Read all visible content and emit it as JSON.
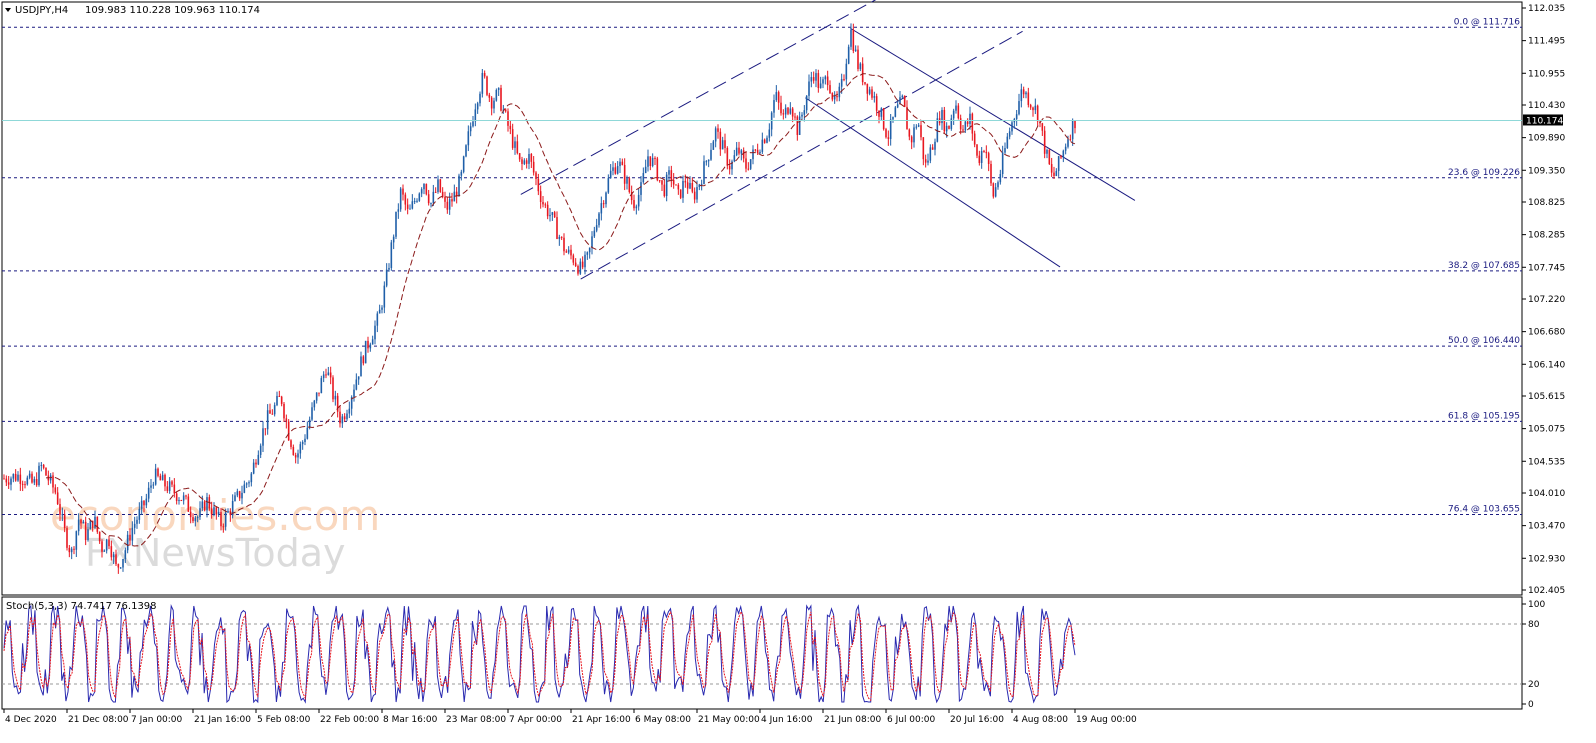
{
  "chart_data": [
    {
      "type": "candlestick",
      "symbol_header": "USDJPY,H4",
      "ohlc_header": "109.983 110.228 109.963 110.174",
      "current_price": "110.174",
      "ylim": [
        102.4,
        112.1
      ],
      "price_ticks": [
        "112.035",
        "111.495",
        "110.955",
        "110.430",
        "109.890",
        "109.350",
        "108.825",
        "108.285",
        "107.745",
        "107.220",
        "106.680",
        "106.140",
        "105.615",
        "105.075",
        "104.535",
        "104.010",
        "103.470",
        "102.930",
        "102.405"
      ],
      "time_ticks": [
        "4 Dec 2020",
        "21 Dec 08:00",
        "7 Jan 00:00",
        "21 Jan 16:00",
        "5 Feb 08:00",
        "22 Feb 00:00",
        "8 Mar 16:00",
        "23 Mar 08:00",
        "7 Apr 00:00",
        "21 Apr 16:00",
        "6 May 08:00",
        "21 May 00:00",
        "4 Jun 16:00",
        "21 Jun 08:00",
        "6 Jul 00:00",
        "20 Jul 16:00",
        "4 Aug 08:00",
        "19 Aug 00:00"
      ],
      "price_path": [
        [
          0,
          104.25
        ],
        [
          2,
          104.3
        ],
        [
          4,
          104.15
        ],
        [
          5,
          104.45
        ],
        [
          7,
          104.0
        ],
        [
          8,
          103.4
        ],
        [
          9,
          103.0
        ],
        [
          10,
          103.6
        ],
        [
          11,
          103.3
        ],
        [
          12,
          103.6
        ],
        [
          13,
          103.1
        ],
        [
          14,
          103.25
        ],
        [
          15,
          102.75
        ],
        [
          16,
          103.0
        ],
        [
          17,
          103.4
        ],
        [
          19,
          103.9
        ],
        [
          20,
          104.3
        ],
        [
          22,
          104.1
        ],
        [
          24,
          103.9
        ],
        [
          25,
          103.7
        ],
        [
          26,
          103.6
        ],
        [
          27,
          103.9
        ],
        [
          29,
          103.5
        ],
        [
          31,
          103.9
        ],
        [
          33,
          104.3
        ],
        [
          34,
          104.8
        ],
        [
          35,
          105.2
        ],
        [
          36,
          105.4
        ],
        [
          37,
          105.6
        ],
        [
          38,
          105.0
        ],
        [
          39,
          104.6
        ],
        [
          40,
          104.9
        ],
        [
          41,
          105.3
        ],
        [
          42,
          105.7
        ],
        [
          43,
          106.1
        ],
        [
          44,
          105.6
        ],
        [
          45,
          105.2
        ],
        [
          46,
          105.5
        ],
        [
          47,
          105.9
        ],
        [
          48,
          106.3
        ],
        [
          49,
          106.6
        ],
        [
          50,
          106.9
        ],
        [
          51,
          107.5
        ],
        [
          52,
          108.3
        ],
        [
          53,
          109.0
        ],
        [
          54,
          108.6
        ],
        [
          55,
          108.9
        ],
        [
          56,
          109.2
        ],
        [
          57,
          108.8
        ],
        [
          58,
          109.1
        ],
        [
          59,
          108.7
        ],
        [
          60,
          108.9
        ],
        [
          61,
          109.2
        ],
        [
          62,
          109.9
        ],
        [
          63,
          110.5
        ],
        [
          64,
          110.9
        ],
        [
          65,
          110.5
        ],
        [
          66,
          110.6
        ],
        [
          67,
          110.2
        ],
        [
          68,
          109.8
        ],
        [
          69,
          109.4
        ],
        [
          70,
          109.6
        ],
        [
          71,
          109.2
        ],
        [
          72,
          108.8
        ],
        [
          73,
          108.6
        ],
        [
          74,
          108.3
        ],
        [
          75,
          108.0
        ],
        [
          76,
          107.9
        ],
        [
          77,
          107.7
        ],
        [
          78,
          107.9
        ],
        [
          79,
          108.5
        ],
        [
          80,
          108.9
        ],
        [
          81,
          109.3
        ],
        [
          82,
          109.5
        ],
        [
          83,
          109.2
        ],
        [
          84,
          108.8
        ],
        [
          85,
          109.0
        ],
        [
          86,
          109.6
        ],
        [
          87,
          109.4
        ],
        [
          88,
          109.0
        ],
        [
          89,
          109.3
        ],
        [
          90,
          108.9
        ],
        [
          91,
          109.2
        ],
        [
          92,
          108.9
        ],
        [
          93,
          109.2
        ],
        [
          94,
          109.6
        ],
        [
          95,
          110.0
        ],
        [
          96,
          109.7
        ],
        [
          97,
          109.4
        ],
        [
          98,
          109.7
        ],
        [
          99,
          109.4
        ],
        [
          100,
          109.6
        ],
        [
          101,
          109.8
        ],
        [
          102,
          110.0
        ],
        [
          103,
          110.6
        ],
        [
          104,
          110.2
        ],
        [
          105,
          110.5
        ],
        [
          106,
          110.0
        ],
        [
          107,
          110.5
        ],
        [
          108,
          111.0
        ],
        [
          109,
          110.7
        ],
        [
          110,
          110.9
        ],
        [
          111,
          110.4
        ],
        [
          112,
          110.8
        ],
        [
          113,
          111.7
        ],
        [
          114,
          111.1
        ],
        [
          115,
          110.8
        ],
        [
          116,
          110.6
        ],
        [
          117,
          110.3
        ],
        [
          118,
          109.9
        ],
        [
          119,
          110.3
        ],
        [
          120,
          110.5
        ],
        [
          121,
          109.8
        ],
        [
          122,
          110.2
        ],
        [
          123,
          109.4
        ],
        [
          124,
          109.8
        ],
        [
          125,
          110.3
        ],
        [
          126,
          110.0
        ],
        [
          127,
          110.5
        ],
        [
          128,
          110.0
        ],
        [
          129,
          110.2
        ],
        [
          130,
          109.5
        ],
        [
          131,
          109.8
        ],
        [
          132,
          108.9
        ],
        [
          133,
          109.3
        ],
        [
          134,
          109.9
        ],
        [
          135,
          110.3
        ],
        [
          136,
          110.7
        ],
        [
          137,
          110.5
        ],
        [
          138,
          110.3
        ],
        [
          139,
          109.7
        ],
        [
          140,
          109.2
        ],
        [
          141,
          109.5
        ],
        [
          142,
          109.9
        ],
        [
          143,
          110.17
        ]
      ],
      "fibonacci_levels": [
        {
          "label": "0.0 @ 111.716",
          "price": 111.716
        },
        {
          "label": "23.6 @ 109.226",
          "price": 109.226
        },
        {
          "label": "38.2 @ 107.685",
          "price": 107.685
        },
        {
          "label": "50.0 @ 106.440",
          "price": 106.44
        },
        {
          "label": "61.8 @ 105.195",
          "price": 105.195
        },
        {
          "label": "76.4 @ 103.655",
          "price": 103.655
        }
      ]
    },
    {
      "type": "line",
      "indicator_header": "Stoch(5,3,3) 74.7417 76.1398",
      "ylim": [
        0,
        100
      ],
      "ticks": [
        "100",
        "80",
        "20",
        "0"
      ],
      "levels": [
        80,
        20
      ]
    }
  ],
  "watermark": {
    "line1": "economies.com",
    "line2": "FXNewsToday"
  },
  "colors": {
    "bull": "#1f5fa8",
    "bear": "#e8161f",
    "ma": "#8b1a1a",
    "fib": "#1a1a80",
    "channel": "#1a1a80",
    "price_line": "#8fd8d8",
    "stoch_main": "#2a2ab0",
    "stoch_signal": "#e8161f"
  }
}
